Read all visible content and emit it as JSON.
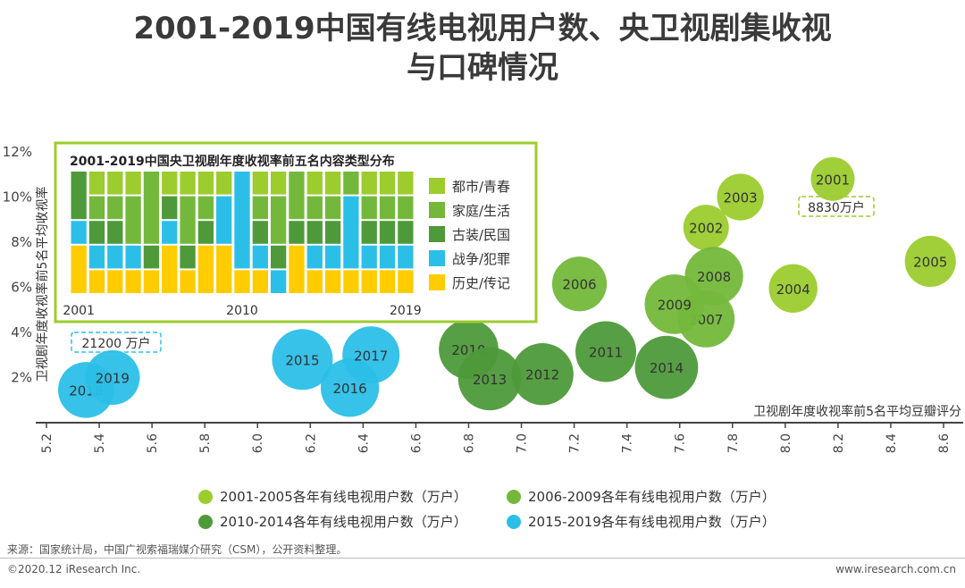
{
  "title": {
    "line1": "2001-2019中国有线电视用户数、央卫视剧集收视",
    "line2": "与口碑情况"
  },
  "colors": {
    "period_2001_2005": "#9ccc2e",
    "period_2006_2009": "#74b83b",
    "period_2010_2014": "#4e9a3a",
    "period_2015_2019": "#2bbfe8",
    "history": "#ffcc00",
    "inset_border": "#9ccc2e"
  },
  "chart_data": [
    {
      "type": "scatter",
      "subtype": "bubble",
      "title": "",
      "xlabel": "卫视剧年度收视率前5名平均豆瓣评分",
      "ylabel": "卫视剧年度收视率前5名平均收视率",
      "xlim": [
        5.2,
        8.6
      ],
      "ylim": [
        0,
        12
      ],
      "x_ticks": [
        "5.2",
        "5.4",
        "5.6",
        "5.8",
        "6.0",
        "6.2",
        "6.4",
        "6.6",
        "6.8",
        "7.0",
        "7.2",
        "7.4",
        "7.6",
        "7.8",
        "8.0",
        "8.2",
        "8.4",
        "8.6"
      ],
      "y_ticks": [
        "2%",
        "4%",
        "6%",
        "8%",
        "10%",
        "12%"
      ],
      "bubble_size_meaning": "各年有线电视用户数（万户）",
      "series": [
        {
          "name": "2001-2005各年有线电视用户数（万户）",
          "color_key": "period_2001_2005",
          "points": [
            {
              "label": "2001",
              "x": 8.18,
              "y": 10.8,
              "size": 0.72
            },
            {
              "label": "2002",
              "x": 7.7,
              "y": 8.65,
              "size": 0.75
            },
            {
              "label": "2003",
              "x": 7.83,
              "y": 10.0,
              "size": 0.77
            },
            {
              "label": "2004",
              "x": 8.03,
              "y": 5.95,
              "size": 0.8
            },
            {
              "label": "2005",
              "x": 8.55,
              "y": 7.15,
              "size": 0.84
            }
          ]
        },
        {
          "name": "2006-2009各年有线电视用户数（万户）",
          "color_key": "period_2006_2009",
          "points": [
            {
              "label": "2006",
              "x": 7.22,
              "y": 6.15,
              "size": 0.9
            },
            {
              "label": "2007",
              "x": 7.7,
              "y": 4.6,
              "size": 0.94
            },
            {
              "label": "2008",
              "x": 7.73,
              "y": 6.5,
              "size": 0.96
            },
            {
              "label": "2009",
              "x": 7.58,
              "y": 5.25,
              "size": 0.98
            }
          ]
        },
        {
          "name": "2010-2014各年有线电视用户数（万户）",
          "color_key": "period_2010_2014",
          "points": [
            {
              "label": "2010",
              "x": 6.8,
              "y": 3.25,
              "size": 0.98
            },
            {
              "label": "2011",
              "x": 7.32,
              "y": 3.15,
              "size": 1.0
            },
            {
              "label": "2012",
              "x": 7.08,
              "y": 2.15,
              "size": 1.02
            },
            {
              "label": "2013",
              "x": 6.88,
              "y": 1.95,
              "size": 1.04
            },
            {
              "label": "2014",
              "x": 7.55,
              "y": 2.45,
              "size": 1.04
            }
          ]
        },
        {
          "name": "2015-2019各年有线电视用户数（万户）",
          "color_key": "period_2015_2019",
          "points": [
            {
              "label": "2015",
              "x": 6.17,
              "y": 2.8,
              "size": 1.0
            },
            {
              "label": "2016",
              "x": 6.35,
              "y": 1.55,
              "size": 0.96
            },
            {
              "label": "2017",
              "x": 6.43,
              "y": 3.0,
              "size": 0.94
            },
            {
              "label": "2018",
              "x": 5.35,
              "y": 1.45,
              "size": 0.92
            },
            {
              "label": "2019",
              "x": 5.45,
              "y": 2.0,
              "size": 0.9
            }
          ]
        }
      ],
      "annotations": [
        {
          "text": "8830万户",
          "near": "2001"
        },
        {
          "text": "21200 万户",
          "near": "2018-2019"
        }
      ]
    },
    {
      "type": "bar",
      "subtype": "stacked-100",
      "title": "2001-2019中国央卫视剧年度收视率前五名内容类型分布",
      "x_tick_labels": [
        "2001",
        "2010",
        "2019"
      ],
      "categories": [
        "2001",
        "2002",
        "2003",
        "2004",
        "2005",
        "2006",
        "2007",
        "2008",
        "2009",
        "2010",
        "2011",
        "2012",
        "2013",
        "2014",
        "2015",
        "2016",
        "2017",
        "2018",
        "2019"
      ],
      "legend": [
        "都市/青春",
        "家庭/生活",
        "古装/民国",
        "战争/犯罪",
        "历史/传记"
      ],
      "legend_colors": [
        "#9ccc2e",
        "#74b83b",
        "#4e9a3a",
        "#2bbfe8",
        "#ffcc00"
      ],
      "series": [
        {
          "name": "历史/传记",
          "color": "#ffcc00",
          "values": [
            2,
            1,
            1,
            1,
            1,
            2,
            1,
            2,
            2,
            1,
            1,
            0,
            2,
            1,
            1,
            1,
            1,
            1,
            1
          ]
        },
        {
          "name": "战争/犯罪",
          "color": "#2bbfe8",
          "values": [
            1,
            1,
            1,
            1,
            0,
            1,
            0,
            0,
            2,
            4,
            1,
            1,
            0,
            1,
            1,
            3,
            1,
            1,
            1
          ]
        },
        {
          "name": "古装/民国",
          "color": "#4e9a3a",
          "values": [
            2,
            1,
            1,
            0,
            1,
            1,
            1,
            1,
            0,
            0,
            1,
            1,
            1,
            1,
            1,
            0,
            1,
            1,
            1
          ]
        },
        {
          "name": "家庭/生活",
          "color": "#74b83b",
          "values": [
            0,
            1,
            1,
            2,
            3,
            0,
            2,
            1,
            0,
            0,
            1,
            2,
            2,
            1,
            1,
            1,
            1,
            1,
            1
          ]
        },
        {
          "name": "都市/青春",
          "color": "#9ccc2e",
          "values": [
            0,
            1,
            1,
            1,
            0,
            1,
            1,
            1,
            1,
            0,
            1,
            1,
            0,
            1,
            1,
            0,
            1,
            1,
            1
          ]
        }
      ]
    }
  ],
  "legend": {
    "items": [
      {
        "label": "2001-2005各年有线电视用户数（万户）",
        "color_key": "period_2001_2005"
      },
      {
        "label": "2006-2009各年有线电视用户数（万户）",
        "color_key": "period_2006_2009"
      },
      {
        "label": "2010-2014各年有线电视用户数（万户）",
        "color_key": "period_2010_2014"
      },
      {
        "label": "2015-2019各年有线电视用户数（万户）",
        "color_key": "period_2015_2019"
      }
    ]
  },
  "footer": {
    "source": "来源：国家统计局，中国广视索福瑞媒介研究（CSM），公开资料整理。",
    "copyright": "©2020.12 iResearch Inc.",
    "website": "www.iresearch.com.cn"
  }
}
